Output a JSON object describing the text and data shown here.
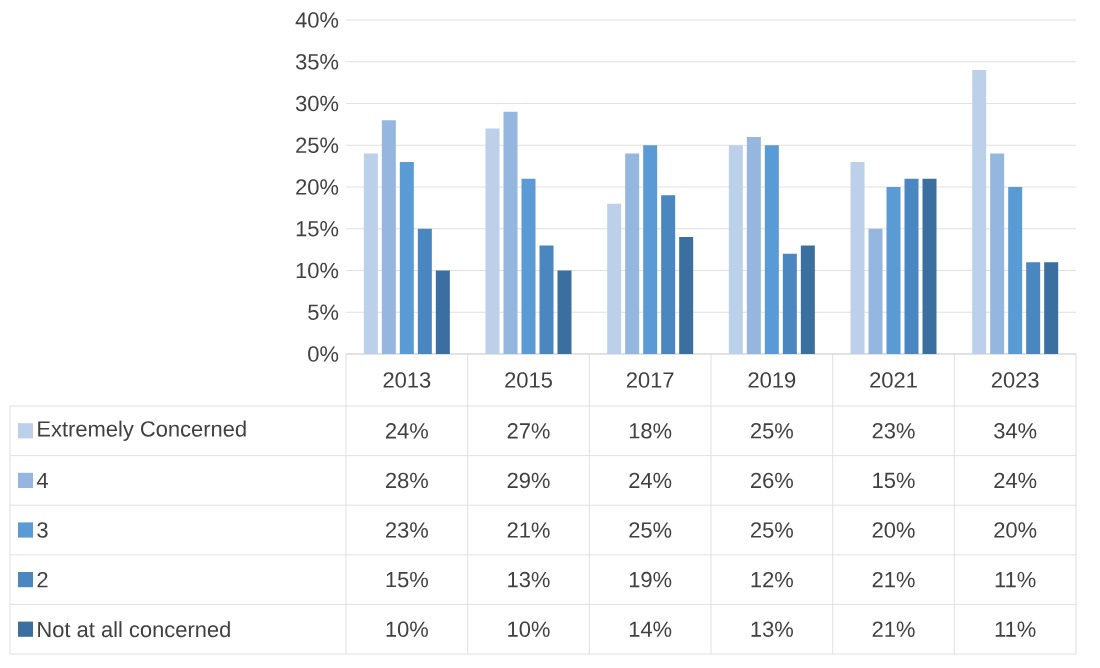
{
  "chart_data": {
    "type": "bar",
    "categories": [
      "2013",
      "2015",
      "2017",
      "2019",
      "2021",
      "2023"
    ],
    "series": [
      {
        "name": "Extremely Concerned",
        "color": "#bdd0ea",
        "values": [
          24,
          27,
          18,
          25,
          23,
          34
        ],
        "value_labels": [
          "24%",
          "27%",
          "18%",
          "25%",
          "23%",
          "34%"
        ]
      },
      {
        "name": "4",
        "color": "#95b7df",
        "values": [
          28,
          29,
          24,
          26,
          15,
          24
        ],
        "value_labels": [
          "28%",
          "29%",
          "24%",
          "26%",
          "15%",
          "24%"
        ]
      },
      {
        "name": "3",
        "color": "#5b9bd5",
        "values": [
          23,
          21,
          25,
          25,
          20,
          20
        ],
        "value_labels": [
          "23%",
          "21%",
          "25%",
          "25%",
          "20%",
          "20%"
        ]
      },
      {
        "name": "2",
        "color": "#4a86bf",
        "values": [
          15,
          13,
          19,
          12,
          21,
          11
        ],
        "value_labels": [
          "15%",
          "13%",
          "19%",
          "12%",
          "21%",
          "11%"
        ]
      },
      {
        "name": "Not at all concerned",
        "color": "#3a6f9f",
        "values": [
          10,
          10,
          14,
          13,
          21,
          11
        ],
        "value_labels": [
          "10%",
          "10%",
          "14%",
          "13%",
          "21%",
          "11%"
        ]
      }
    ],
    "ylim": [
      0,
      40
    ],
    "yticks": [
      {
        "value": 0,
        "label": "0%"
      },
      {
        "value": 5,
        "label": "5%"
      },
      {
        "value": 10,
        "label": "10%"
      },
      {
        "value": 15,
        "label": "15%"
      },
      {
        "value": 20,
        "label": "20%"
      },
      {
        "value": 25,
        "label": "25%"
      },
      {
        "value": 30,
        "label": "30%"
      },
      {
        "value": 35,
        "label": "35%"
      },
      {
        "value": 40,
        "label": "40%"
      }
    ],
    "grid": "y",
    "legend": "bottom"
  }
}
